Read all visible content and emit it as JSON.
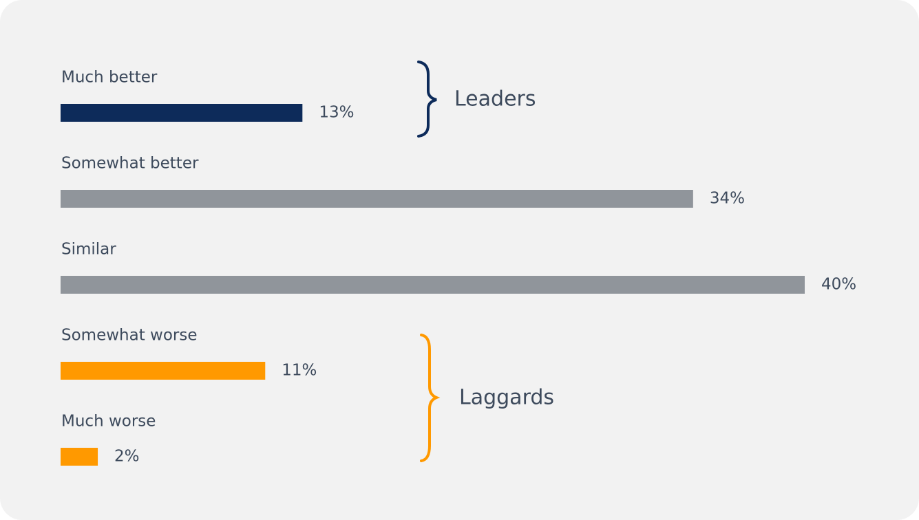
{
  "chart_data": {
    "type": "bar",
    "orientation": "horizontal",
    "categories": [
      "Much better",
      "Somewhat better",
      "Similar",
      "Somewhat worse",
      "Much worse"
    ],
    "values": [
      13,
      34,
      40,
      11,
      2
    ],
    "value_labels": [
      "13%",
      "34%",
      "40%",
      "11%",
      "2%"
    ],
    "colors": [
      "#0d2b5a",
      "#90959b",
      "#90959b",
      "#ff9900",
      "#ff9900"
    ],
    "annotations": [
      {
        "text": "Leaders",
        "color": "#0d2b5a"
      },
      {
        "text": "Laggards",
        "color": "#ff9900"
      }
    ]
  }
}
